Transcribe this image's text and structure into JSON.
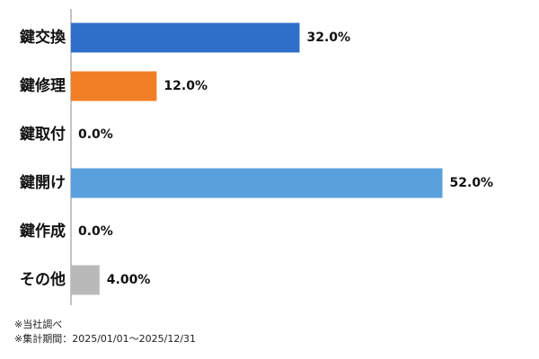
{
  "chart_data": {
    "type": "bar",
    "orientation": "horizontal",
    "categories": [
      "鍵交換",
      "鍵修理",
      "鍵取付",
      "鍵開け",
      "鍵作成",
      "その他"
    ],
    "values": [
      32.0,
      12.0,
      0.0,
      52.0,
      0.0,
      4.0
    ],
    "value_labels": [
      "32.0%",
      "12.0%",
      "0.0%",
      "52.0%",
      "0.0%",
      "4.00%"
    ],
    "colors": [
      "#2f6fc8",
      "#f07f26",
      "#2f6fc8",
      "#5aa0dc",
      "#2f6fc8",
      "#b9b9b9"
    ],
    "xlim": [
      0,
      63
    ],
    "unit": "%",
    "grid": false,
    "legend": "none"
  },
  "footnotes": {
    "source": "※当社調べ",
    "period": "※集計期間：2025/01/01～2025/12/31"
  }
}
